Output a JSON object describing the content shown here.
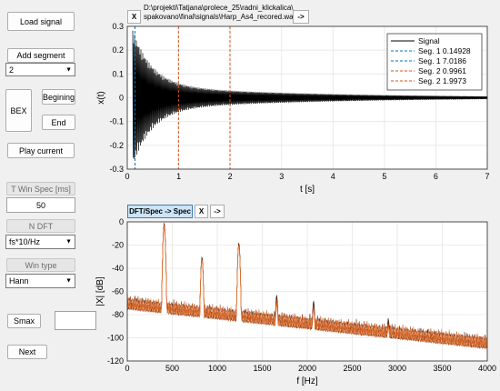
{
  "controls": {
    "load_signal": "Load signal",
    "add_segment": "Add segment",
    "segment_select": "2",
    "bex": "BEX",
    "begining": "Begining",
    "end": "End",
    "play_current": "Play current",
    "t_win_spec_label": "T Win Spec [ms]",
    "t_win_spec_value": "50",
    "n_dft_label": "N DFT",
    "n_dft_select": "fs*10/Hz",
    "win_type_label": "Win type",
    "win_type_select": "Hann",
    "smax": "Smax",
    "smax_value": "",
    "next": "Next"
  },
  "top_bar": {
    "x_button": "X",
    "file_path_line1": "D:\\projekti\\Tatjana\\prolece_25\\radni_klickalica\\",
    "file_path_line2": "spakovano\\final\\signals\\Harp_As4_recored.wav",
    "arrow_button": "->"
  },
  "bottom_bar": {
    "dft_button": "DFT/Spec -> Spec",
    "x_button": "X",
    "arrow_button": "->"
  },
  "colors": {
    "signal": "#000000",
    "seg_blue": "#0072bd",
    "seg_orange": "#d95319",
    "spectrum_dark": "#000000",
    "spectrum_orange": "#d95319"
  },
  "chart_data": [
    {
      "type": "line",
      "xlabel": "t [s]",
      "ylabel": "x(t)",
      "xlim": [
        0,
        7
      ],
      "ylim": [
        -0.3,
        0.3
      ],
      "xticks": [
        "0",
        "1",
        "2",
        "3",
        "4",
        "5",
        "6",
        "7"
      ],
      "yticks": [
        "0.3",
        "0.2",
        "0.1",
        "0",
        "-0.1",
        "-0.2",
        "-0.3"
      ],
      "grid": true,
      "legend_position": "top-right",
      "series": [
        {
          "name": "Signal",
          "style": "solid",
          "color": "#000000",
          "peak_amplitude": 0.29,
          "onset": 0.1
        },
        {
          "name": "Seg. 1 0.14928",
          "style": "dashed",
          "color": "#0072bd",
          "x": 0.14928
        },
        {
          "name": "Seg. 1 7.0186",
          "style": "dashed",
          "color": "#0072bd",
          "x": 7.0186
        },
        {
          "name": "Seg. 2 0.9961",
          "style": "dashed",
          "color": "#d95319",
          "x": 0.9961
        },
        {
          "name": "Seg. 2 1.9973",
          "style": "dashed",
          "color": "#d95319",
          "x": 1.9973
        }
      ]
    },
    {
      "type": "line",
      "xlabel": "f [Hz]",
      "ylabel": "|X| [dB]",
      "xlim": [
        0,
        4000
      ],
      "ylim": [
        -120,
        0
      ],
      "xticks": [
        "0",
        "500",
        "1000",
        "1500",
        "2000",
        "2500",
        "3000",
        "3500",
        "4000"
      ],
      "yticks": [
        "0",
        "-20",
        "-40",
        "-60",
        "-80",
        "-100",
        "-120"
      ],
      "grid": true,
      "peaks": [
        {
          "f": 410,
          "db": -1
        },
        {
          "f": 830,
          "db": -30
        },
        {
          "f": 1240,
          "db": -18
        },
        {
          "f": 1660,
          "db": -63
        },
        {
          "f": 2070,
          "db": -68
        },
        {
          "f": 2900,
          "db": -83
        }
      ]
    }
  ]
}
